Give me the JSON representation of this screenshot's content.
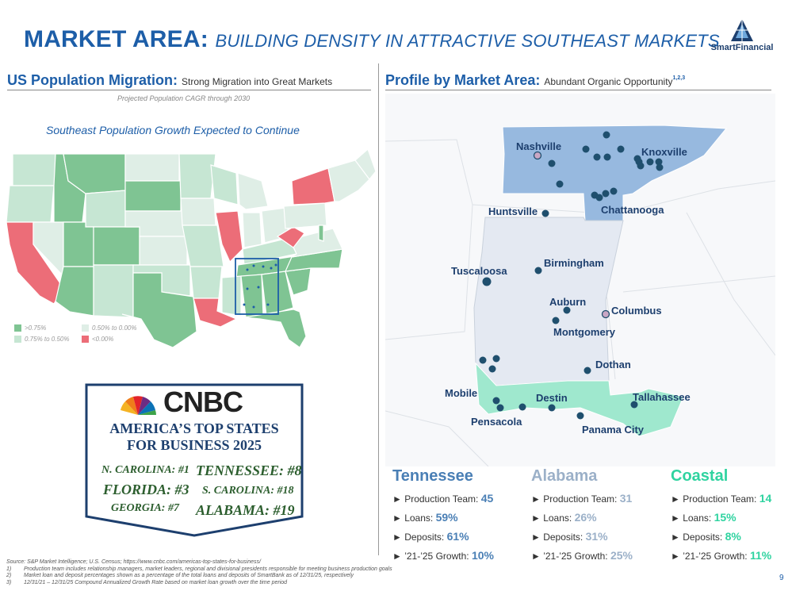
{
  "title": {
    "main": "MARKET AREA:",
    "sub": "BUILDING DENSITY IN ATTRACTIVE SOUTHEAST MARKETS"
  },
  "logo": {
    "text": "SmartFinancial"
  },
  "left": {
    "heading": "US Population Migration:",
    "subheading": "Strong Migration into Great Markets",
    "cagr_note": "Projected Population CAGR through 2030",
    "map_title": "Southeast Population Growth Expected to Continue",
    "legend": [
      {
        "label": ">0.75%",
        "color": "#7fc493"
      },
      {
        "label": "0.50% to 0.00%",
        "color": "#dfeee6"
      },
      {
        "label": "0.75% to 0.50%",
        "color": "#c6e6d3"
      },
      {
        "label": "<0.00%",
        "color": "#ec6d78"
      }
    ]
  },
  "cnbc": {
    "brand": "CNBC",
    "headline_1": "AMERICA’S TOP STATES",
    "headline_2": "FOR BUSINESS 2025",
    "rankings": {
      "nc": "N. CAROLINA: #1",
      "tn": "TENNESSEE: #8",
      "fl": "FLORIDA: #3",
      "sc": "S. CAROLINA: #18",
      "ga": "GEORGIA: #7",
      "al": "ALABAMA: #19"
    }
  },
  "right": {
    "heading": "Profile by Market Area:",
    "subheading": "Abundant Organic Opportunity",
    "sup": "1,2,3",
    "markets": {
      "nashville": "Nashville",
      "knoxville": "Knoxville",
      "huntsville": "Huntsville",
      "chattanooga": "Chattanooga",
      "tuscaloosa": "Tuscaloosa",
      "birmingham": "Birmingham",
      "auburn": "Auburn",
      "columbus": "Columbus",
      "montgomery": "Montgomery",
      "dothan": "Dothan",
      "mobile": "Mobile",
      "destin": "Destin",
      "tallahassee": "Tallahassee",
      "pensacola": "Pensacola",
      "panama_city": "Panama City"
    }
  },
  "stats": [
    {
      "name": "Tennessee",
      "color": "#4a7fb5",
      "production_label": "► Production Team:",
      "production": "45",
      "loans_label": "► Loans:",
      "loans": "59%",
      "deposits_label": "► Deposits:",
      "deposits": "61%",
      "growth_label": "► ’21-’25 Growth:",
      "growth": "10%"
    },
    {
      "name": "Alabama",
      "color": "#9bb0c8",
      "production_label": "► Production Team:",
      "production": "31",
      "loans_label": "► Loans:",
      "loans": "26%",
      "deposits_label": "► Deposits:",
      "deposits": "31%",
      "growth_label": "► ’21-’25 Growth:",
      "growth": "25%"
    },
    {
      "name": "Coastal",
      "color": "#2fd3a0",
      "production_label": "► Production Team:",
      "production": "14",
      "loans_label": "► Loans:",
      "loans": "15%",
      "deposits_label": "► Deposits:",
      "deposits": "8%",
      "growth_label": "► ’21-’25 Growth:",
      "growth": "11%"
    }
  ],
  "notes": {
    "source": "Source: S&P Market Intelligence; U.S. Census; https://www.cnbc.com/americas-top-states-for-business/",
    "n1_num": "1)",
    "n1": "Production team includes relationship managers, market leaders, regional and divisional presidents responsible for meeting business production goals",
    "n2_num": "2)",
    "n2": "Market loan and deposit percentages shown as a percentage of the total loans and deposits of SmartBank as of 12/31/25, respectively",
    "n3_num": "3)",
    "n3": "12/31/21 – 12/31/25 Compound Annualized Growth Rate based on market loan growth over the time period"
  },
  "page_number": "9"
}
